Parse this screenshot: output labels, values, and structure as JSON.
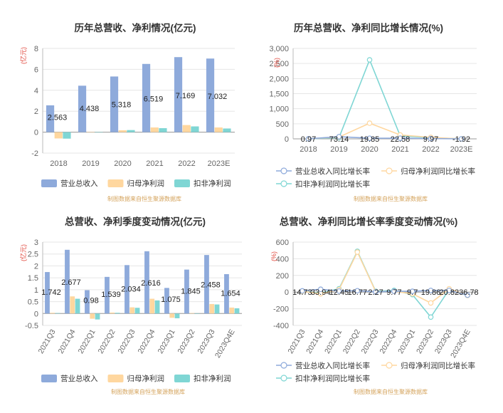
{
  "colors": {
    "revenue": "#8eaadb",
    "net_profit": "#ffd79f",
    "deducted_profit": "#7fd6d4",
    "source": "#d4a35c",
    "unit": "#e0453a",
    "axis": "#666666",
    "grid": "#e6e6e6",
    "title": "#333333"
  },
  "chart_data": [
    {
      "id": "annual_values",
      "type": "bar",
      "title": "历年总营收、净利情况(亿元)",
      "unit_label": "(亿元)",
      "categories": [
        "2018",
        "2019",
        "2020",
        "2021",
        "2022",
        "2023E"
      ],
      "series": [
        {
          "name": "营业总收入",
          "values": [
            2.563,
            4.438,
            5.318,
            6.519,
            7.169,
            7.032
          ]
        },
        {
          "name": "归母净利润",
          "values": [
            -0.6,
            0.02,
            0.18,
            0.45,
            0.68,
            0.45
          ]
        },
        {
          "name": "扣非净利润",
          "values": [
            -0.62,
            0.0,
            0.2,
            0.38,
            0.55,
            0.35
          ]
        }
      ],
      "data_labels": [
        "2.563",
        "4.438",
        "5.318",
        "6.519",
        "7.169",
        "7.032"
      ],
      "yticks": [
        "8",
        "6",
        "4",
        "2",
        "0",
        "-2"
      ],
      "ylim": [
        -2,
        8
      ],
      "legend_position": "bottom",
      "source_note": "制图数据来自恒生聚源数据库"
    },
    {
      "id": "annual_growth",
      "type": "line",
      "title": "历年总营收、净利同比增长情况(%)",
      "unit_label": "(%)",
      "categories": [
        "2018",
        "2019",
        "2020",
        "2021",
        "2022",
        "2023E"
      ],
      "series": [
        {
          "name": "营业总收入同比增长率",
          "values": [
            0.97,
            73.14,
            19.85,
            22.58,
            9.97,
            -1.92
          ]
        },
        {
          "name": "归母净利润同比增长率",
          "values": [
            -30,
            60,
            520,
            130,
            50,
            -35
          ]
        },
        {
          "name": "扣非净利润同比增长率",
          "values": [
            -40,
            40,
            2620,
            100,
            40,
            -40
          ]
        }
      ],
      "data_labels": [
        "0.97",
        "73.14",
        "19.85",
        "22.58",
        "9.97",
        "-1.92"
      ],
      "yticks": [
        "3,000",
        "2,500",
        "2,000",
        "1,500",
        "1,000",
        "500",
        "0"
      ],
      "ylim": [
        0,
        3000
      ],
      "legend_position": "bottom",
      "source_note": "制图数据来自恒生聚源数据库"
    },
    {
      "id": "quarterly_values",
      "type": "bar",
      "title": "总营收、净利季度变动情况(亿元)",
      "unit_label": "(亿元)",
      "categories": [
        "2021Q3",
        "2021Q4",
        "2022Q1",
        "2022Q2",
        "2022Q3",
        "2022Q4",
        "2023Q1",
        "2023Q2",
        "2023Q3",
        "2023Q4E"
      ],
      "series": [
        {
          "name": "营业总收入",
          "values": [
            1.742,
            2.677,
            0.98,
            1.539,
            2.034,
            2.616,
            1.075,
            1.845,
            2.458,
            1.654
          ]
        },
        {
          "name": "归母净利润",
          "values": [
            0.03,
            0.72,
            -0.22,
            0.04,
            0.26,
            0.62,
            -0.18,
            0.02,
            0.4,
            0.25
          ]
        },
        {
          "name": "扣非净利润",
          "values": [
            0.02,
            0.62,
            -0.25,
            0.03,
            0.24,
            0.55,
            -0.2,
            0.0,
            0.38,
            0.22
          ]
        }
      ],
      "data_labels": [
        "1.742",
        "2.677",
        "0.98",
        "1.539",
        "2.034",
        "2.616",
        "1.075",
        "1.845",
        "2.458",
        "1.654"
      ],
      "yticks": [
        "3",
        "2.5",
        "2",
        "1.5",
        "1",
        "0.5",
        "0",
        "-0.5"
      ],
      "ylim": [
        -0.5,
        3
      ],
      "legend_position": "bottom",
      "source_note": "制图数据来自恒生聚源数据库"
    },
    {
      "id": "quarterly_growth",
      "type": "line",
      "title": "总营收、净利同比增长率季度变动情况(%)",
      "unit_label": "(%)",
      "categories": [
        "2021Q3",
        "2021Q4",
        "2022Q1",
        "2022Q2",
        "2022Q3",
        "2022Q4",
        "2023Q1",
        "2023Q2",
        "2023Q3",
        "2023Q4E"
      ],
      "series": [
        {
          "name": "营业总收入同比增长率",
          "values": [
            14.73,
            33.94,
            12.45,
            16.77,
            2.27,
            9.77,
            9.7,
            19.86,
            20.82,
            -36.78
          ]
        },
        {
          "name": "归母净利润同比增长率",
          "values": [
            10,
            -20,
            30,
            480,
            5,
            10,
            -20,
            -130,
            40,
            -40
          ]
        },
        {
          "name": "扣非净利润同比增长率",
          "values": [
            10,
            -10,
            40,
            490,
            10,
            20,
            -30,
            -300,
            30,
            -40
          ]
        }
      ],
      "data_labels": [
        "14.73",
        "33.94",
        "12.45",
        "16.77",
        "2.27",
        "9.77",
        "9.7",
        "19.86",
        "20.82",
        "-36.78"
      ],
      "yticks": [
        "600",
        "400",
        "200",
        "0",
        "-200",
        "-400"
      ],
      "ylim": [
        -400,
        600
      ],
      "legend_position": "bottom",
      "source_note": "制图数据来自恒生聚源数据库"
    }
  ]
}
